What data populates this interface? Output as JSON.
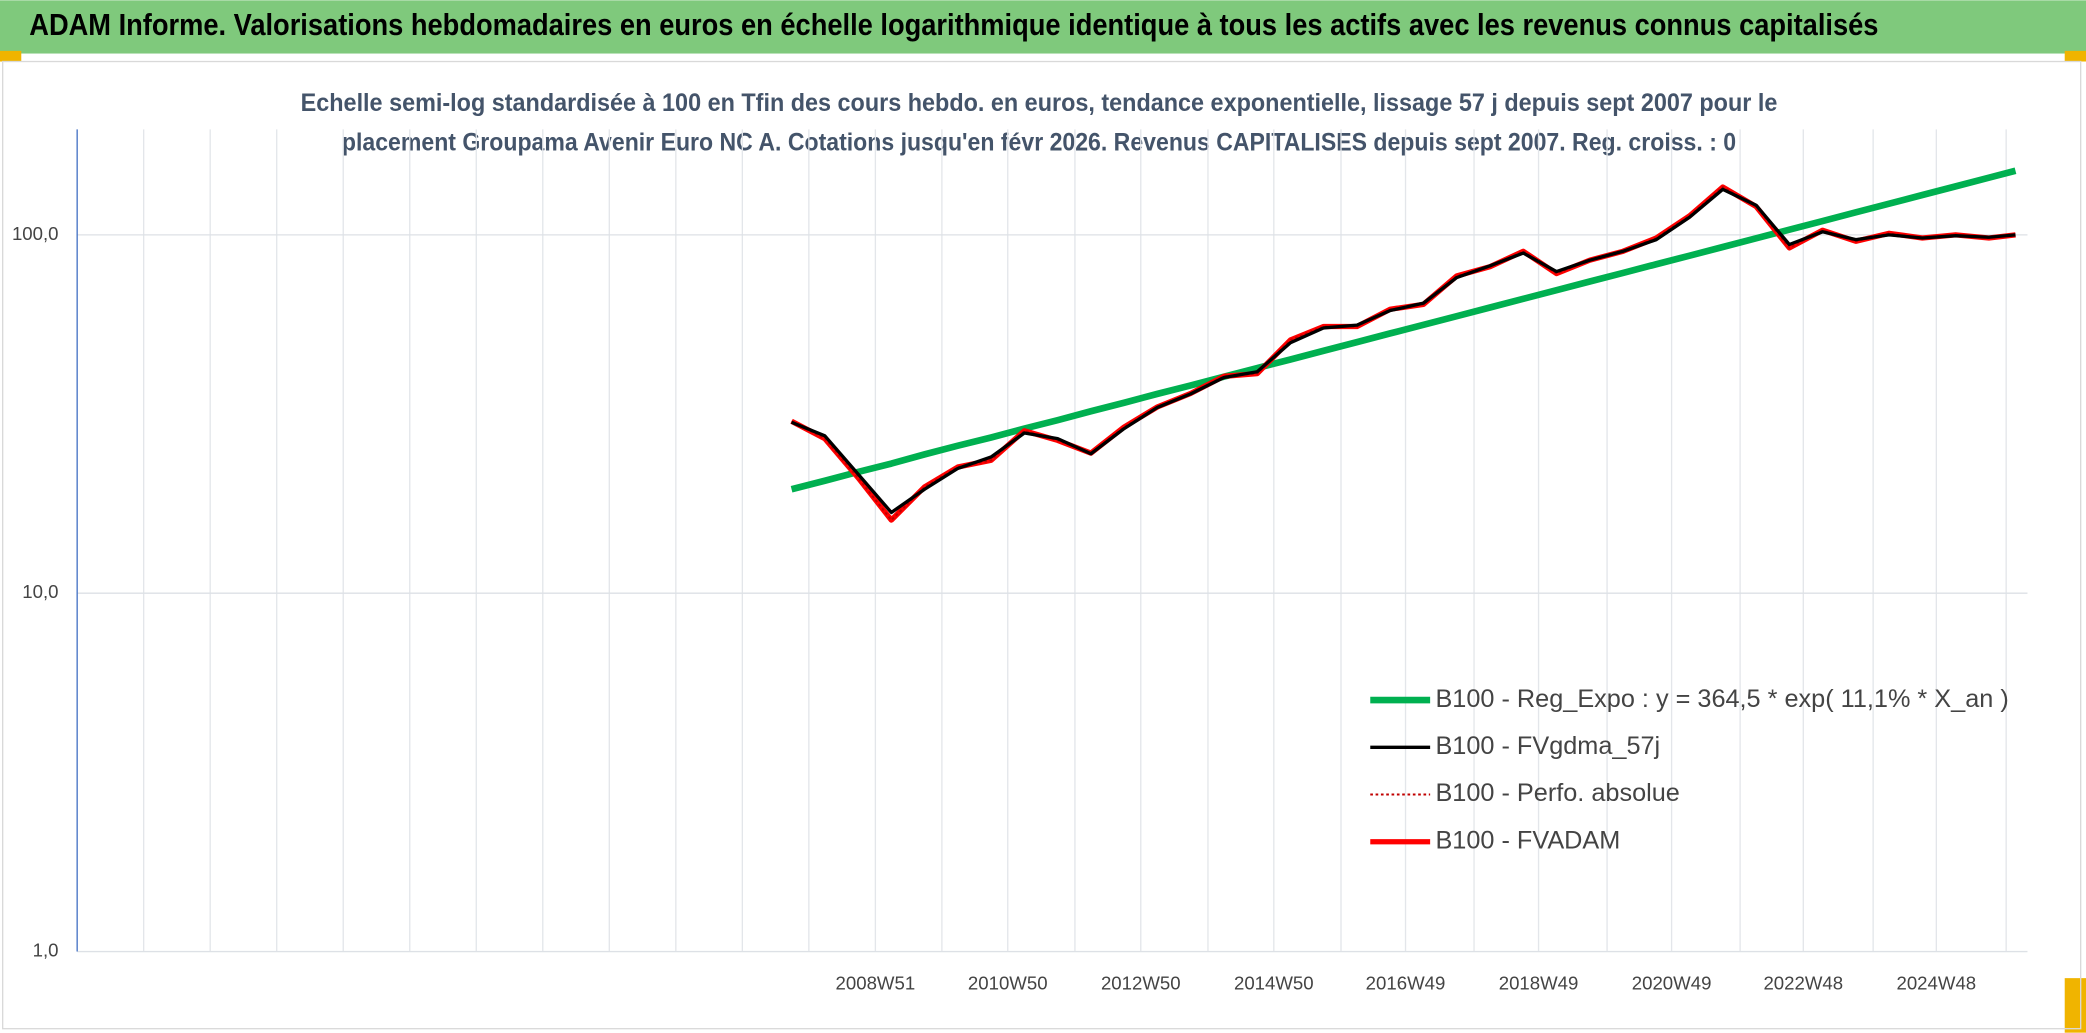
{
  "chart_data": {
    "type": "line",
    "title": "ADAM Informe. Valorisations hebdomadaires en euros en échelle logarithmique identique à tous les actifs avec les revenus connus capitalisés",
    "subtitle": [
      "Echelle semi-log standardisée à 100 en Tfin des cours hebdo. en euros, tendance exponentielle, lissage 57 j depuis sept 2007 pour le",
      "placement Groupama Avenir Euro NC A. Cotations jusqu'en févr 2026. Revenus CAPITALISES depuis sept 2007. Reg. croiss. : 0"
    ],
    "x": [
      2007.7,
      2008.2,
      2008.7,
      2009.2,
      2009.7,
      2010.2,
      2010.7,
      2011.2,
      2011.7,
      2012.2,
      2012.7,
      2013.2,
      2013.7,
      2014.2,
      2014.7,
      2015.2,
      2015.7,
      2016.2,
      2016.7,
      2017.2,
      2017.7,
      2018.2,
      2018.7,
      2019.2,
      2019.7,
      2020.2,
      2020.7,
      2021.2,
      2021.7,
      2022.2,
      2022.7,
      2023.2,
      2023.7,
      2024.2,
      2024.7,
      2025.2,
      2025.7,
      2026.1
    ],
    "series": [
      {
        "name": "B100 - Reg_Expo : y = 364,5 * exp( 11,1% *  X_an )",
        "color": "#00b050",
        "values": [
          19.5,
          20.6,
          21.8,
          23.0,
          24.4,
          25.8,
          27.2,
          28.8,
          30.4,
          32.2,
          34.0,
          36.0,
          38.0,
          40.2,
          42.5,
          44.9,
          47.5,
          50.2,
          53.1,
          56.1,
          59.3,
          62.7,
          66.3,
          70.1,
          74.1,
          78.3,
          82.8,
          87.5,
          92.5,
          97.8,
          103.4,
          109.3,
          115.6,
          122.2,
          129.2,
          136.6,
          144.4,
          151.0
        ]
      },
      {
        "name": "B100 - FVgdma_57j",
        "color": "#000000",
        "values": [
          30.0,
          27.5,
          21.5,
          16.8,
          19.5,
          22.3,
          24,
          28,
          27,
          24.5,
          28.8,
          33,
          36,
          40,
          41.5,
          50,
          55,
          56,
          61.5,
          64.5,
          76,
          82,
          89,
          79,
          85,
          90,
          97,
          112,
          134,
          121,
          94,
          102,
          97,
          100,
          98,
          99.5,
          98.5,
          100
        ]
      },
      {
        "name": "B100 - Perfo. absolue",
        "color": "#c00000",
        "dash": true,
        "values": [
          30.2,
          27,
          21,
          16,
          19.8,
          22.5,
          23.5,
          28.4,
          26.7,
          24.6,
          29.1,
          33.1,
          36.1,
          40.3,
          41,
          50.9,
          55.5,
          55.5,
          62,
          64,
          76.8,
          81.5,
          90,
          78,
          85,
          90,
          98,
          113,
          136,
          120,
          92,
          103,
          96,
          101,
          98,
          100,
          98,
          100
        ]
      },
      {
        "name": "B100 - FVADAM",
        "color": "#ff0000",
        "values": [
          30.2,
          27,
          21,
          16,
          19.8,
          22.5,
          23.5,
          28.4,
          26.7,
          24.6,
          29.1,
          33.1,
          36.1,
          40.3,
          41,
          50.9,
          55.5,
          55.5,
          62,
          64,
          76.8,
          81.5,
          90,
          78,
          85,
          90,
          98,
          113,
          136,
          120,
          92,
          103,
          96,
          101,
          98,
          100,
          98,
          100
        ]
      }
    ],
    "ylog": true,
    "ylim": [
      1,
      197
    ],
    "yticks": [
      {
        "value": 1,
        "label": "1,0"
      },
      {
        "value": 10,
        "label": "10,0"
      },
      {
        "value": 100,
        "label": "100,0"
      }
    ],
    "xlim": [
      1996.96,
      2026.28
    ],
    "xticks": [
      {
        "value": 1997.96,
        "label": null
      },
      {
        "value": 1998.96,
        "label": null
      },
      {
        "value": 1999.96,
        "label": null
      },
      {
        "value": 2000.96,
        "label": null
      },
      {
        "value": 2001.96,
        "label": null
      },
      {
        "value": 2002.96,
        "label": null
      },
      {
        "value": 2003.96,
        "label": null
      },
      {
        "value": 2004.96,
        "label": null
      },
      {
        "value": 2005.96,
        "label": null
      },
      {
        "value": 2006.96,
        "label": null
      },
      {
        "value": 2007.96,
        "label": null
      },
      {
        "value": 2008.96,
        "label": "2008W51"
      },
      {
        "value": 2009.96,
        "label": null
      },
      {
        "value": 2010.95,
        "label": "2010W50"
      },
      {
        "value": 2011.96,
        "label": null
      },
      {
        "value": 2012.95,
        "label": "2012W50"
      },
      {
        "value": 2013.96,
        "label": null
      },
      {
        "value": 2014.95,
        "label": "2014W50"
      },
      {
        "value": 2015.96,
        "label": null
      },
      {
        "value": 2016.93,
        "label": "2016W49"
      },
      {
        "value": 2017.96,
        "label": null
      },
      {
        "value": 2018.93,
        "label": "2018W49"
      },
      {
        "value": 2019.96,
        "label": null
      },
      {
        "value": 2020.93,
        "label": "2020W49"
      },
      {
        "value": 2021.96,
        "label": null
      },
      {
        "value": 2022.91,
        "label": "2022W48"
      },
      {
        "value": 2023.96,
        "label": null
      },
      {
        "value": 2024.91,
        "label": "2024W48"
      },
      {
        "value": 2025.96,
        "label": null
      }
    ],
    "grid": true,
    "legend": "lower right"
  }
}
